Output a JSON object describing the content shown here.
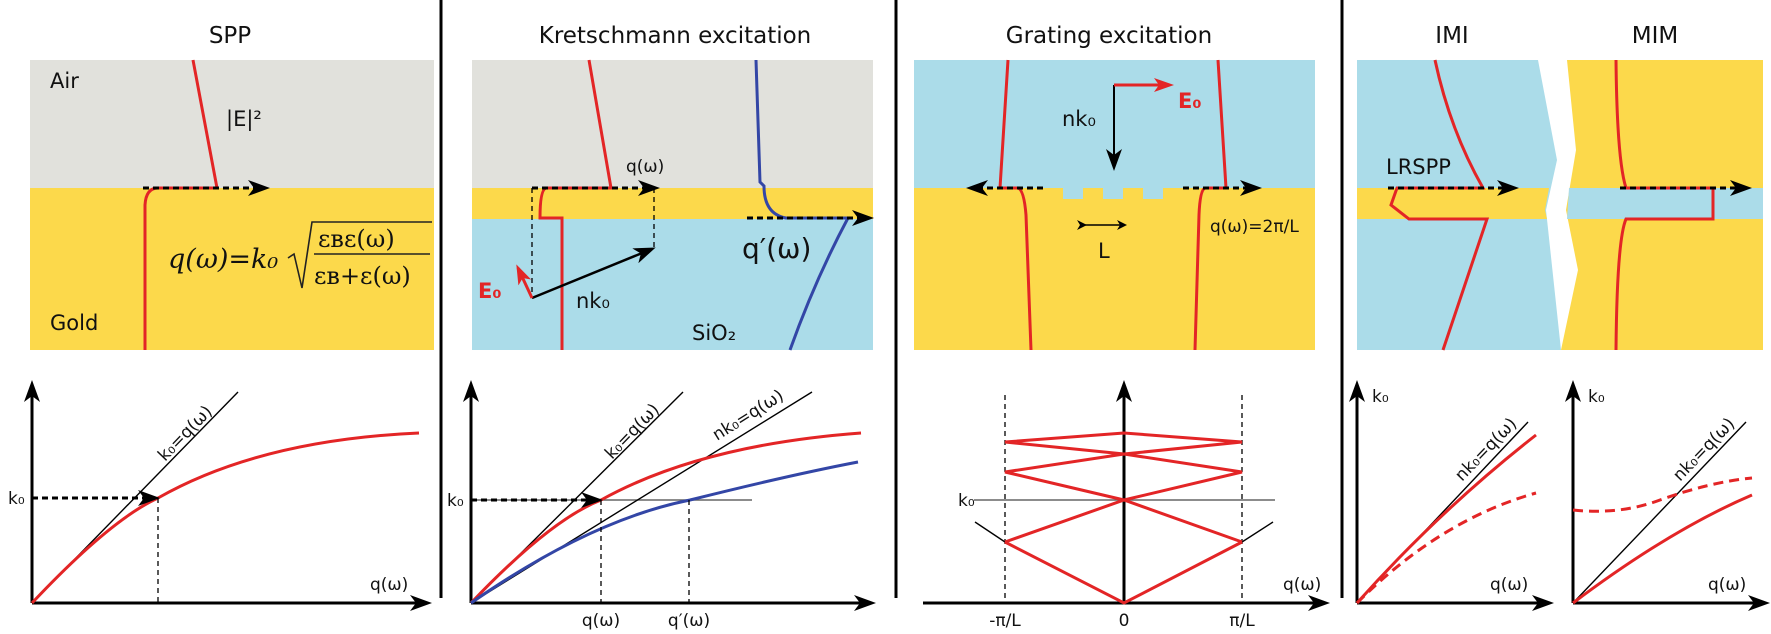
{
  "colors": {
    "air": "#e1e1dc",
    "gold": "#fcd94b",
    "dielectric": "#abdce9",
    "field": "#e32526",
    "field2": "#3346a6"
  },
  "panels": {
    "spp": {
      "title": "SPP",
      "air": "Air",
      "gold": "Gold",
      "field": "|E|²",
      "eq_lhs": "q(ω)=k₀",
      "eq_num": "εʙε(ω)",
      "eq_den": "εʙ+ε(ω)"
    },
    "kretschmann": {
      "title": "Kretschmann excitation",
      "q": "q(ω)",
      "q_prime": "q′(ω)",
      "e0": "E₀",
      "nk0": "nk₀",
      "sio2": "SiO₂"
    },
    "grating": {
      "title": "Grating excitation",
      "nk0": "nk₀",
      "e0": "E₀",
      "period": "L",
      "q": "q(ω)=2π/L"
    },
    "imi": {
      "title": "IMI",
      "mode": "LRSPP"
    },
    "mim": {
      "title": "MIM"
    }
  },
  "graphs": {
    "spp": {
      "k0": "k₀",
      "light_line": "k₀=q(ω)",
      "xlabel": "q(ω)"
    },
    "kretschmann": {
      "k0": "k₀",
      "light_line": "k₀=q(ω)",
      "prism_line": "nk₀=q(ω)",
      "tick_q": "q(ω)",
      "tick_qp": "q′(ω)"
    },
    "grating": {
      "k0": "k₀",
      "xlabel": "q(ω)",
      "ticks": [
        "-π/L",
        "0",
        "π/L"
      ]
    },
    "imi": {
      "ylabel": "k₀",
      "line": "nk₀=q(ω)",
      "xlabel": "q(ω)"
    },
    "mim": {
      "ylabel": "k₀",
      "line": "nk₀=q(ω)",
      "xlabel": "q(ω)"
    }
  }
}
